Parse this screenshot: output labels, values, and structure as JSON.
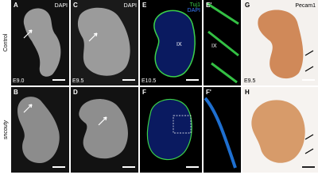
{
  "row_labels": [
    "Control",
    "sncouty"
  ],
  "panels": {
    "A": {
      "label": "A",
      "stain": "DAPI",
      "stage": "E9.0"
    },
    "B": {
      "label": "B"
    },
    "C": {
      "label": "C",
      "stain": "DAPI",
      "stage": "E9.5"
    },
    "D": {
      "label": "D"
    },
    "E": {
      "label": "E",
      "stains": [
        "Tuj1",
        "DAPI"
      ],
      "stage": "E10.5",
      "annotation": "IX"
    },
    "E2": {
      "label": "E'",
      "annotation": "IX"
    },
    "F": {
      "label": "F"
    },
    "F2": {
      "label": "F'"
    },
    "G": {
      "label": "G",
      "stain": "Pecam1",
      "stage": "E9.5"
    },
    "H": {
      "label": "H"
    }
  }
}
